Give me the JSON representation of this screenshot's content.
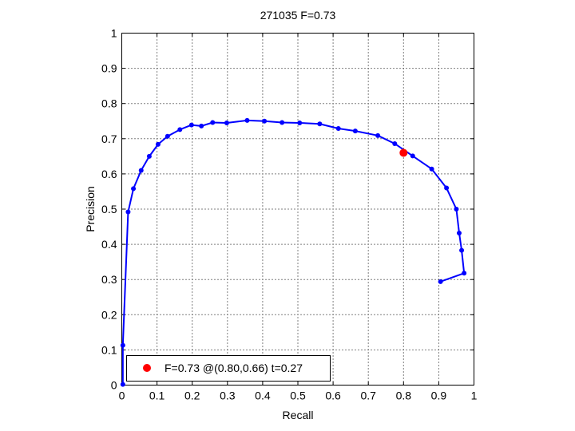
{
  "chart_data": {
    "type": "line",
    "title": "271035 F=0.73",
    "xlabel": "Recall",
    "ylabel": "Precision",
    "xlim": [
      0,
      1
    ],
    "ylim": [
      0,
      1
    ],
    "grid": true,
    "xticks": [
      0,
      0.1,
      0.2,
      0.3,
      0.4,
      0.5,
      0.6,
      0.7,
      0.8,
      0.9,
      1
    ],
    "yticks": [
      0,
      0.1,
      0.2,
      0.3,
      0.4,
      0.5,
      0.6,
      0.7,
      0.8,
      0.9,
      1
    ],
    "xtick_labels": [
      "0",
      "0.1",
      "0.2",
      "0.3",
      "0.4",
      "0.5",
      "0.6",
      "0.7",
      "0.8",
      "0.9",
      "1"
    ],
    "ytick_labels": [
      "0",
      "0.1",
      "0.2",
      "0.3",
      "0.4",
      "0.5",
      "0.6",
      "0.7",
      "0.8",
      "0.9",
      "1"
    ],
    "series": [
      {
        "color": "#0000ff",
        "marker": "dot",
        "points": [
          [
            0.003,
            0.002
          ],
          [
            0.003,
            0.113
          ],
          [
            0.018,
            0.492
          ],
          [
            0.033,
            0.558
          ],
          [
            0.055,
            0.61
          ],
          [
            0.078,
            0.65
          ],
          [
            0.103,
            0.684
          ],
          [
            0.13,
            0.707
          ],
          [
            0.165,
            0.726
          ],
          [
            0.198,
            0.739
          ],
          [
            0.226,
            0.736
          ],
          [
            0.258,
            0.746
          ],
          [
            0.298,
            0.745
          ],
          [
            0.356,
            0.752
          ],
          [
            0.405,
            0.75
          ],
          [
            0.455,
            0.746
          ],
          [
            0.505,
            0.745
          ],
          [
            0.562,
            0.742
          ],
          [
            0.615,
            0.729
          ],
          [
            0.663,
            0.722
          ],
          [
            0.727,
            0.709
          ],
          [
            0.775,
            0.686
          ],
          [
            0.826,
            0.651
          ],
          [
            0.88,
            0.614
          ],
          [
            0.922,
            0.56
          ],
          [
            0.95,
            0.5
          ],
          [
            0.958,
            0.432
          ],
          [
            0.965,
            0.383
          ],
          [
            0.972,
            0.318
          ],
          [
            0.905,
            0.294
          ]
        ]
      }
    ],
    "highlight": {
      "x": 0.8,
      "y": 0.66,
      "color": "#ff0000",
      "label": "F=0.73 @(0.80,0.66) t=0.27"
    },
    "legend_position": "bottom-left"
  }
}
